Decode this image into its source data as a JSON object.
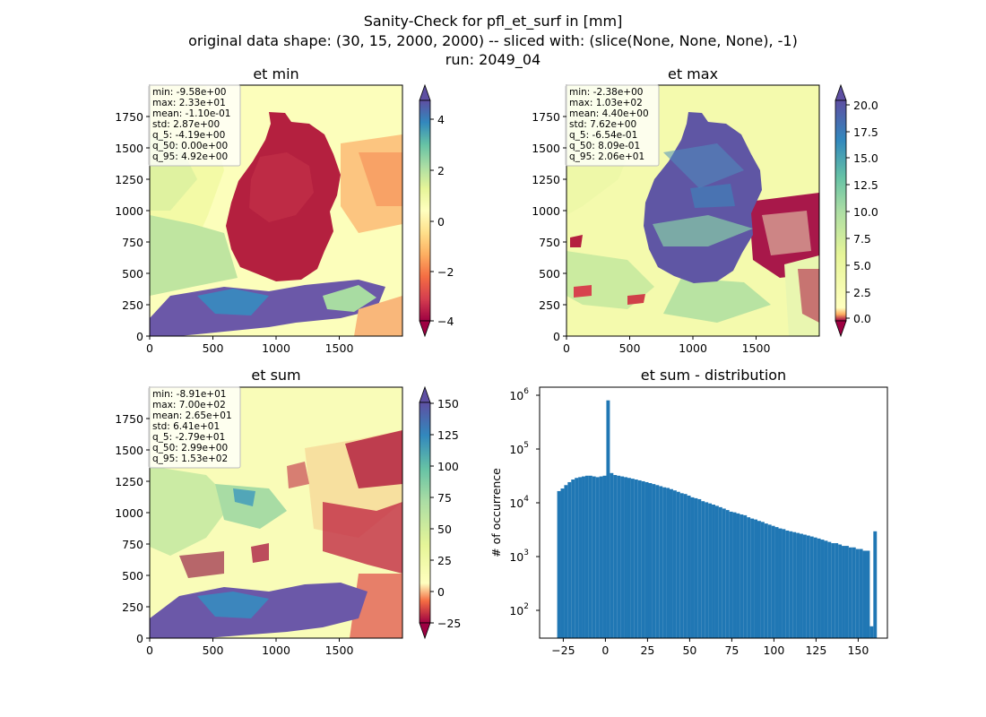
{
  "suptitle": {
    "line1": "Sanity-Check for pfl_et_surf in [mm]",
    "line2": "original data shape: (30, 15, 2000, 2000) -- sliced with: (slice(None, None, None), -1)",
    "line3": "run: 2049_04"
  },
  "panels": {
    "et_min": {
      "title": "et min",
      "stats": [
        "min: -9.58e+00",
        "max: 2.33e+01",
        "mean: -1.10e-01",
        "std: 2.87e+00",
        "q_5: -4.19e+00",
        "q_50: 0.00e+00",
        "q_95: 4.92e+00"
      ],
      "xticks": [
        "0",
        "500",
        "1000",
        "1500"
      ],
      "yticks": [
        "0",
        "250",
        "500",
        "750",
        "1000",
        "1250",
        "1500",
        "1750"
      ],
      "colorbar": {
        "ticks": [
          "4",
          "2",
          "0",
          "−2",
          "−4"
        ],
        "range": [
          -4.5,
          5.0
        ]
      }
    },
    "et_max": {
      "title": "et max",
      "stats": [
        "min: -2.38e+00",
        "max: 1.03e+02",
        "mean: 4.40e+00",
        "std: 7.62e+00",
        "q_5: -6.54e-01",
        "q_50: 8.09e-01",
        "q_95: 2.06e+01"
      ],
      "xticks": [
        "0",
        "500",
        "1000",
        "1500"
      ],
      "yticks": [
        "0",
        "250",
        "500",
        "750",
        "1000",
        "1250",
        "1500",
        "1750"
      ],
      "colorbar": {
        "ticks": [
          "20.0",
          "17.5",
          "15.0",
          "12.5",
          "10.0",
          "7.5",
          "5.0",
          "2.5",
          "0.0"
        ],
        "range": [
          -0.7,
          21.0
        ]
      }
    },
    "et_sum": {
      "title": "et sum",
      "stats": [
        "min: -8.91e+01",
        "max: 7.00e+02",
        "mean: 2.65e+01",
        "std: 6.41e+01",
        "q_5: -2.79e+01",
        "q_50: 2.99e+00",
        "q_95: 1.53e+02"
      ],
      "xticks": [
        "0",
        "500",
        "1000",
        "1500"
      ],
      "yticks": [
        "0",
        "250",
        "500",
        "750",
        "1000",
        "1250",
        "1500",
        "1750"
      ],
      "colorbar": {
        "ticks": [
          "150",
          "125",
          "100",
          "75",
          "50",
          "25",
          "0",
          "−25"
        ],
        "range": [
          -36,
          158
        ]
      }
    },
    "hist": {
      "title": "et sum - distribution",
      "ylabel": "# of occurrence",
      "xticks": [
        "−25",
        "0",
        "25",
        "50",
        "75",
        "100",
        "125",
        "150"
      ],
      "ytick_exponents": [
        "2",
        "3",
        "4",
        "5",
        "6"
      ]
    }
  },
  "colors": {
    "bar": "#2077b4"
  },
  "chart_data": [
    {
      "type": "heatmap",
      "title": "et min",
      "colormap": "Spectral",
      "xlim": [
        0,
        2000
      ],
      "ylim": [
        0,
        2000
      ],
      "color_range": [
        -4.5,
        5.0
      ],
      "extend": "both"
    },
    {
      "type": "heatmap",
      "title": "et max",
      "colormap": "Spectral",
      "xlim": [
        0,
        2000
      ],
      "ylim": [
        0,
        2000
      ],
      "color_range": [
        -0.7,
        21.0
      ],
      "extend": "both"
    },
    {
      "type": "heatmap",
      "title": "et sum",
      "colormap": "Spectral",
      "xlim": [
        0,
        2000
      ],
      "ylim": [
        0,
        2000
      ],
      "color_range": [
        -36,
        158
      ],
      "extend": "both"
    },
    {
      "type": "bar",
      "title": "et sum - distribution",
      "ylabel": "# of occurrence",
      "yscale": "log",
      "xlim": [
        -38,
        160
      ],
      "ylim": [
        30,
        1500000
      ],
      "grid": false,
      "bins": [
        [
          -28,
          17000
        ],
        [
          -26,
          19000
        ],
        [
          -24,
          22000
        ],
        [
          -22,
          25000
        ],
        [
          -20,
          28000
        ],
        [
          -18,
          30000
        ],
        [
          -16,
          31000
        ],
        [
          -14,
          32000
        ],
        [
          -12,
          33000
        ],
        [
          -10,
          33000
        ],
        [
          -8,
          32000
        ],
        [
          -6,
          31000
        ],
        [
          -4,
          32000
        ],
        [
          -2,
          33000
        ],
        [
          0,
          850000
        ],
        [
          2,
          37000
        ],
        [
          4,
          34000
        ],
        [
          6,
          33000
        ],
        [
          8,
          32000
        ],
        [
          10,
          31000
        ],
        [
          12,
          30000
        ],
        [
          14,
          29000
        ],
        [
          16,
          28000
        ],
        [
          18,
          27000
        ],
        [
          20,
          26000
        ],
        [
          22,
          25000
        ],
        [
          24,
          24000
        ],
        [
          26,
          23000
        ],
        [
          28,
          22000
        ],
        [
          30,
          21000
        ],
        [
          32,
          20000
        ],
        [
          34,
          19500
        ],
        [
          36,
          18500
        ],
        [
          38,
          17500
        ],
        [
          40,
          16500
        ],
        [
          42,
          15500
        ],
        [
          44,
          15000
        ],
        [
          46,
          14000
        ],
        [
          48,
          13000
        ],
        [
          50,
          12500
        ],
        [
          52,
          12000
        ],
        [
          54,
          11000
        ],
        [
          56,
          10500
        ],
        [
          58,
          10000
        ],
        [
          60,
          9500
        ],
        [
          62,
          9000
        ],
        [
          64,
          8500
        ],
        [
          66,
          8000
        ],
        [
          68,
          7500
        ],
        [
          70,
          7000
        ],
        [
          72,
          6800
        ],
        [
          74,
          6500
        ],
        [
          76,
          6200
        ],
        [
          78,
          6000
        ],
        [
          80,
          5500
        ],
        [
          82,
          5200
        ],
        [
          84,
          5000
        ],
        [
          86,
          4700
        ],
        [
          88,
          4500
        ],
        [
          90,
          4200
        ],
        [
          92,
          4000
        ],
        [
          94,
          3800
        ],
        [
          96,
          3600
        ],
        [
          98,
          3400
        ],
        [
          100,
          3300
        ],
        [
          102,
          3100
        ],
        [
          104,
          3000
        ],
        [
          106,
          2900
        ],
        [
          108,
          2800
        ],
        [
          110,
          2700
        ],
        [
          112,
          2600
        ],
        [
          114,
          2500
        ],
        [
          116,
          2400
        ],
        [
          118,
          2300
        ],
        [
          120,
          2200
        ],
        [
          122,
          2100
        ],
        [
          124,
          2000
        ],
        [
          126,
          1900
        ],
        [
          128,
          1800
        ],
        [
          130,
          1800
        ],
        [
          132,
          1700
        ],
        [
          134,
          1600
        ],
        [
          136,
          1600
        ],
        [
          138,
          1500
        ],
        [
          140,
          1500
        ],
        [
          142,
          1400
        ],
        [
          144,
          1400
        ],
        [
          146,
          1300
        ],
        [
          148,
          1300
        ],
        [
          150,
          50
        ],
        [
          152,
          3000
        ]
      ]
    }
  ]
}
